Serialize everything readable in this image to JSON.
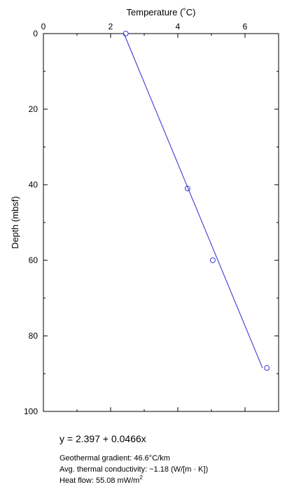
{
  "chart_data": {
    "type": "scatter",
    "x_label": "Temperature (˚C)",
    "y_label": "Depth (mbsf)",
    "xlim": [
      0,
      7
    ],
    "xticks": [
      0,
      2,
      4,
      6
    ],
    "x_minor_ticks": [
      1,
      3,
      5,
      7
    ],
    "ylim": [
      0,
      100
    ],
    "yticks": [
      0,
      20,
      40,
      60,
      80,
      100
    ],
    "y_minor_ticks": [
      10,
      30,
      50,
      70,
      90
    ],
    "y_inverted": true,
    "x_axis_top": true,
    "series": [
      {
        "kind": "points",
        "color": "#3a3ad0",
        "x": [
          2.45,
          4.29,
          5.04,
          6.65
        ],
        "values": [
          0,
          41,
          60,
          88.5
        ]
      },
      {
        "kind": "fit",
        "color": "#2a2acc",
        "x": [
          2.397,
          6.52
        ],
        "values": [
          0,
          88.5
        ]
      }
    ],
    "equation": "y = 2.397 + 0.0466x",
    "notes": [
      "Geothermal gradient: 46.6°C/km",
      "Avg. thermal conductivity: ~1.18 (W/[m · K])"
    ],
    "heat_flow": {
      "text": "Heat flow: 55.08 mW/m",
      "sup": "2"
    }
  }
}
